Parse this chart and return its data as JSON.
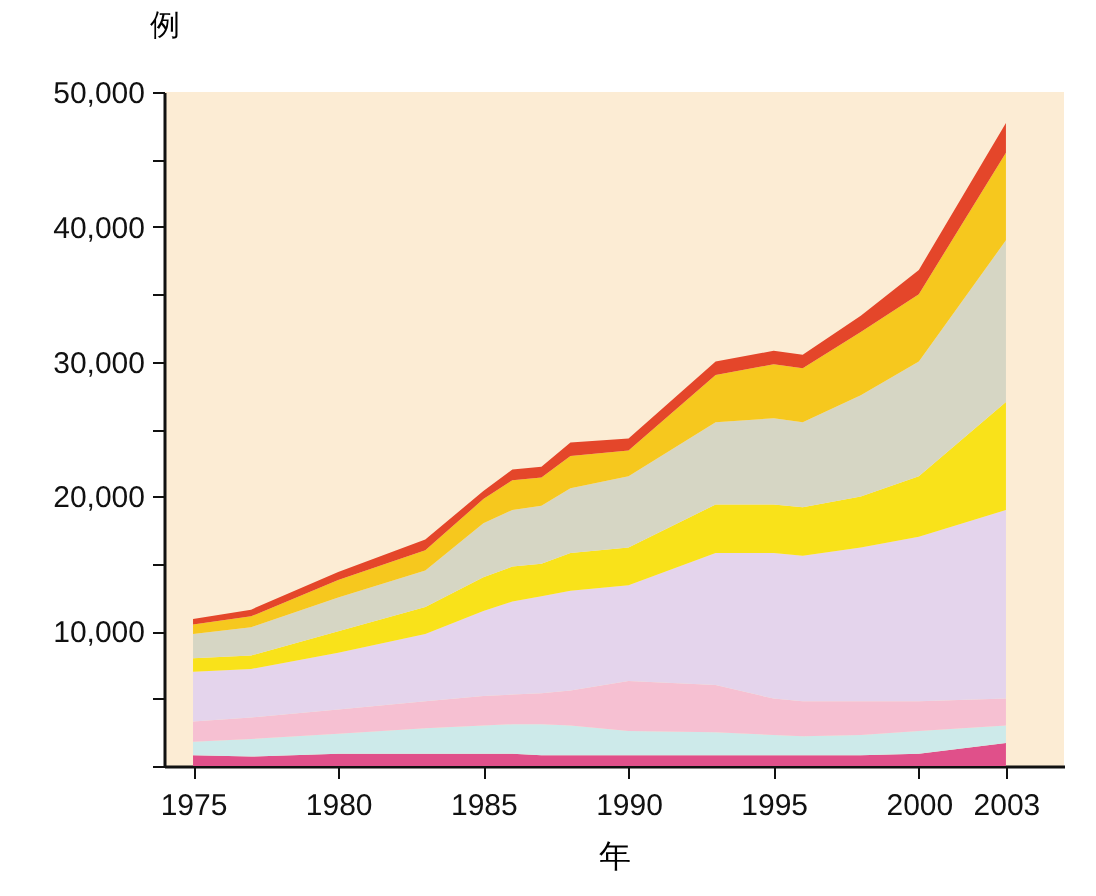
{
  "chart_data": {
    "type": "area",
    "stacked": true,
    "xlabel": "年",
    "ylabel": "例",
    "x": [
      1975,
      1977,
      1980,
      1983,
      1985,
      1986,
      1987,
      1988,
      1990,
      1993,
      1995,
      1996,
      1998,
      2000,
      2003
    ],
    "xlim": [
      1974,
      2005
    ],
    "xticks": [
      1975,
      1980,
      1985,
      1990,
      1995,
      2000,
      2003
    ],
    "ylim": [
      0,
      50000
    ],
    "yticks": [
      {
        "value": 0,
        "label": null
      },
      {
        "value": 5000,
        "label": null
      },
      {
        "value": 10000,
        "label": "10,000"
      },
      {
        "value": 15000,
        "label": null
      },
      {
        "value": 20000,
        "label": "20,000"
      },
      {
        "value": 25000,
        "label": null
      },
      {
        "value": 30000,
        "label": "30,000"
      },
      {
        "value": 35000,
        "label": null
      },
      {
        "value": 40000,
        "label": "40,000"
      },
      {
        "value": 45000,
        "label": null
      },
      {
        "value": 50000,
        "label": "50,000"
      }
    ],
    "series": [
      {
        "color": "#e0508a",
        "values": [
          800,
          700,
          900,
          900,
          900,
          900,
          800,
          800,
          800,
          800,
          800,
          800,
          800,
          900,
          1700
        ]
      },
      {
        "color": "#cdeaea",
        "values": [
          1000,
          1300,
          1500,
          1900,
          2100,
          2200,
          2300,
          2200,
          1800,
          1700,
          1500,
          1400,
          1500,
          1700,
          1300
        ]
      },
      {
        "color": "#f6c0d2",
        "values": [
          1500,
          1600,
          1800,
          2000,
          2200,
          2200,
          2300,
          2600,
          3700,
          3500,
          2700,
          2600,
          2500,
          2200,
          2000
        ]
      },
      {
        "color": "#e4d4ec",
        "values": [
          3700,
          3600,
          4200,
          5000,
          6300,
          6900,
          7200,
          7400,
          7100,
          9800,
          10800,
          10800,
          11400,
          12200,
          14000
        ]
      },
      {
        "color": "#f9e21a",
        "values": [
          1000,
          1000,
          1600,
          2000,
          2500,
          2600,
          2400,
          2800,
          2800,
          3600,
          3600,
          3600,
          3800,
          4500,
          8000
        ]
      },
      {
        "color": "#d6d6c4",
        "values": [
          1800,
          2100,
          2500,
          2700,
          4000,
          4200,
          4300,
          4800,
          5300,
          6100,
          6400,
          6300,
          7500,
          8500,
          12000
        ]
      },
      {
        "color": "#f6c81e",
        "values": [
          700,
          800,
          1300,
          1500,
          1800,
          2200,
          2100,
          2400,
          1900,
          3500,
          4000,
          4000,
          4700,
          5000,
          6500
        ]
      },
      {
        "color": "#e4462a",
        "values": [
          400,
          500,
          600,
          800,
          600,
          800,
          800,
          1000,
          900,
          1000,
          1000,
          1000,
          1200,
          1800,
          2200
        ]
      }
    ]
  }
}
